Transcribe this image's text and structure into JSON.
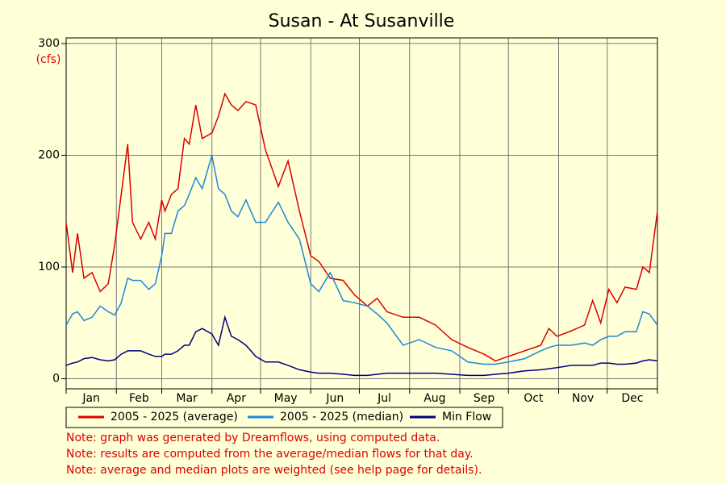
{
  "chart_data": {
    "type": "line",
    "title": "Susan - At Susanville",
    "y_label": "(cfs)",
    "x": [
      0,
      4,
      7,
      11,
      16,
      21,
      26,
      30,
      34,
      38,
      41,
      46,
      51,
      55,
      59,
      61,
      65,
      69,
      73,
      76,
      80,
      84,
      90,
      94,
      98,
      102,
      106,
      111,
      117,
      123,
      131,
      137,
      144,
      151,
      156,
      163,
      171,
      178,
      186,
      192,
      198,
      208,
      218,
      228,
      238,
      248,
      258,
      265,
      273,
      283,
      293,
      298,
      303,
      312,
      320,
      325,
      330,
      335,
      340,
      345,
      352,
      356,
      360,
      365
    ],
    "xlim": [
      0,
      365
    ],
    "xticks": [
      0,
      31,
      59,
      90,
      120,
      151,
      181,
      212,
      243,
      273,
      304,
      334,
      365
    ],
    "month_labels": [
      "Jan",
      "Feb",
      "Mar",
      "Apr",
      "May",
      "Jun",
      "Jul",
      "Aug",
      "Sep",
      "Oct",
      "Nov",
      "Dec"
    ],
    "ylim": [
      -9,
      305
    ],
    "yticks": [
      0,
      100,
      200,
      300
    ],
    "grid": true,
    "series": [
      {
        "name": "2005 - 2025 (average)",
        "color": "#dd0000",
        "values": [
          140,
          95,
          130,
          90,
          95,
          78,
          85,
          120,
          165,
          210,
          140,
          125,
          140,
          125,
          160,
          150,
          165,
          170,
          215,
          210,
          245,
          215,
          220,
          235,
          255,
          245,
          240,
          248,
          245,
          205,
          172,
          195,
          150,
          110,
          105,
          90,
          88,
          75,
          65,
          72,
          60,
          55,
          55,
          48,
          35,
          28,
          22,
          16,
          20,
          25,
          30,
          45,
          38,
          43,
          48,
          70,
          50,
          80,
          68,
          82,
          80,
          100,
          95,
          150
        ]
      },
      {
        "name": "2005 - 2025 (median)",
        "color": "#1e88d8",
        "values": [
          48,
          58,
          60,
          52,
          55,
          65,
          60,
          57,
          68,
          90,
          88,
          88,
          80,
          85,
          110,
          130,
          130,
          150,
          155,
          165,
          180,
          170,
          200,
          170,
          165,
          150,
          145,
          160,
          140,
          140,
          158,
          140,
          125,
          85,
          78,
          95,
          70,
          68,
          65,
          58,
          50,
          30,
          35,
          28,
          25,
          15,
          13,
          13,
          15,
          18,
          25,
          28,
          30,
          30,
          32,
          30,
          35,
          38,
          38,
          42,
          42,
          60,
          58,
          48
        ]
      },
      {
        "name": "Min Flow",
        "color": "#000080",
        "values": [
          12,
          14,
          15,
          18,
          19,
          17,
          16,
          17,
          22,
          25,
          25,
          25,
          22,
          20,
          20,
          22,
          22,
          25,
          30,
          30,
          42,
          45,
          40,
          30,
          55,
          38,
          35,
          30,
          20,
          15,
          15,
          12,
          8,
          6,
          5,
          5,
          4,
          3,
          3,
          4,
          5,
          5,
          5,
          5,
          4,
          3,
          3,
          4,
          5,
          7,
          8,
          9,
          10,
          12,
          12,
          12,
          14,
          14,
          13,
          13,
          14,
          16,
          17,
          16
        ]
      }
    ],
    "notes": [
      "Note: graph was generated by Dreamflows, using computed data.",
      "Note: results are computed from the average/median flows for that day.",
      "Note: average and median plots are weighted (see help page for details)."
    ]
  }
}
